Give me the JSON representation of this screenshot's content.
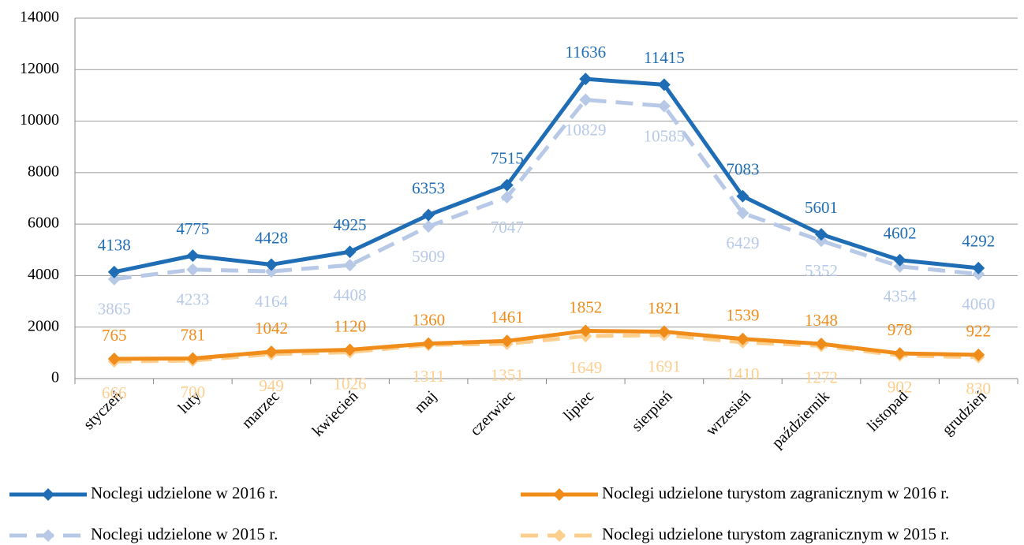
{
  "chart_data": {
    "type": "line",
    "categories": [
      "styczeń",
      "luty",
      "marzec",
      "kwiecień",
      "maj",
      "czerwiec",
      "lipiec",
      "sierpień",
      "wrzesień",
      "październik",
      "listopad",
      "grudzień"
    ],
    "series": [
      {
        "name": "Noclegi udzielone w 2016 r.",
        "color": "#1f6db5",
        "dashed": false,
        "values": [
          4138,
          4775,
          4428,
          4925,
          6353,
          7515,
          11636,
          11415,
          7083,
          5601,
          4602,
          4292
        ]
      },
      {
        "name": "Noclegi udzielone w 2015 r.",
        "color": "#b7c9e6",
        "dashed": true,
        "values": [
          3865,
          4233,
          4164,
          4408,
          5909,
          7047,
          10829,
          10585,
          6429,
          5352,
          4354,
          4060
        ]
      },
      {
        "name": "Noclegi udzielone turystom zagranicznym w 2016 r.",
        "color": "#ef8c1a",
        "dashed": false,
        "values": [
          765,
          781,
          1042,
          1120,
          1360,
          1461,
          1852,
          1821,
          1539,
          1348,
          978,
          922
        ]
      },
      {
        "name": "Noclegi udzielone turystom zagranicznym w 2015 r.",
        "color": "#fdcf8e",
        "dashed": true,
        "values": [
          666,
          700,
          949,
          1026,
          1311,
          1351,
          1649,
          1691,
          1410,
          1272,
          902,
          830
        ]
      }
    ],
    "ylim": [
      0,
      14000
    ],
    "yticks": [
      0,
      2000,
      4000,
      6000,
      8000,
      10000,
      12000,
      14000
    ],
    "grid": true,
    "legend": "bottom"
  }
}
